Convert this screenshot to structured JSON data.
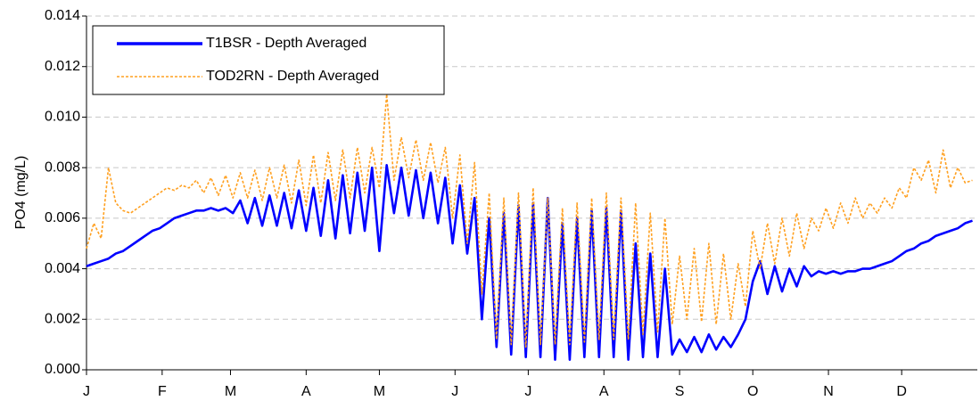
{
  "chart_data": {
    "type": "line",
    "y_label": "PO4 (mg/L)",
    "x": [
      0,
      3,
      6,
      9,
      12,
      15,
      18,
      21,
      24,
      27,
      30,
      33,
      36,
      39,
      42,
      45,
      48,
      51,
      54,
      57,
      60,
      63,
      66,
      69,
      72,
      75,
      78,
      81,
      84,
      87,
      90,
      93,
      96,
      99,
      102,
      105,
      108,
      111,
      114,
      117,
      120,
      123,
      126,
      129,
      132,
      135,
      138,
      141,
      144,
      147,
      150,
      153,
      156,
      159,
      162,
      165,
      168,
      171,
      174,
      177,
      180,
      183,
      186,
      189,
      192,
      195,
      198,
      201,
      204,
      207,
      210,
      213,
      216,
      219,
      222,
      225,
      228,
      231,
      234,
      237,
      240,
      243,
      246,
      249,
      252,
      255,
      258,
      261,
      264,
      267,
      270,
      273,
      276,
      279,
      282,
      285,
      288,
      291,
      294,
      297,
      300,
      303,
      306,
      309,
      312,
      315,
      318,
      321,
      324,
      327,
      330,
      333,
      336,
      339,
      342,
      345,
      348,
      351,
      354,
      357,
      360,
      363
    ],
    "series": [
      {
        "name": "T1BSR - Depth Averaged",
        "color": "#0000ff",
        "style": "solid",
        "values": [
          0.0041,
          0.0042,
          0.0043,
          0.0044,
          0.0046,
          0.0047,
          0.0049,
          0.0051,
          0.0053,
          0.0055,
          0.0056,
          0.0058,
          0.006,
          0.0061,
          0.0062,
          0.0063,
          0.0063,
          0.0064,
          0.0063,
          0.0064,
          0.0062,
          0.0067,
          0.0058,
          0.0068,
          0.0057,
          0.0069,
          0.0057,
          0.007,
          0.0056,
          0.0071,
          0.0055,
          0.0072,
          0.0053,
          0.0075,
          0.0052,
          0.0077,
          0.0054,
          0.0078,
          0.0055,
          0.008,
          0.0047,
          0.0081,
          0.0062,
          0.008,
          0.0061,
          0.0079,
          0.006,
          0.0078,
          0.0058,
          0.0076,
          0.005,
          0.0073,
          0.0046,
          0.0068,
          0.002,
          0.006,
          0.0009,
          0.0062,
          0.0006,
          0.0065,
          0.0005,
          0.0066,
          0.0005,
          0.0068,
          0.0004,
          0.0058,
          0.0004,
          0.006,
          0.0005,
          0.0063,
          0.0005,
          0.0064,
          0.0005,
          0.0063,
          0.0004,
          0.005,
          0.0005,
          0.0046,
          0.0005,
          0.004,
          0.0006,
          0.0012,
          0.0007,
          0.0013,
          0.0007,
          0.0014,
          0.0008,
          0.0013,
          0.0009,
          0.0014,
          0.002,
          0.0035,
          0.0043,
          0.003,
          0.0041,
          0.0031,
          0.004,
          0.0033,
          0.0041,
          0.0037,
          0.0039,
          0.0038,
          0.0039,
          0.0038,
          0.0039,
          0.0039,
          0.004,
          0.004,
          0.0041,
          0.0042,
          0.0043,
          0.0045,
          0.0047,
          0.0048,
          0.005,
          0.0051,
          0.0053,
          0.0054,
          0.0055,
          0.0056,
          0.0058,
          0.0059
        ]
      },
      {
        "name": "TOD2RN - Depth Averaged",
        "color": "#ffa020",
        "style": "dashed",
        "values": [
          0.0048,
          0.0058,
          0.0052,
          0.008,
          0.0066,
          0.0063,
          0.0062,
          0.0064,
          0.0066,
          0.0068,
          0.007,
          0.0072,
          0.0071,
          0.0073,
          0.0072,
          0.0075,
          0.007,
          0.0076,
          0.0069,
          0.0077,
          0.0068,
          0.0078,
          0.0068,
          0.0079,
          0.0067,
          0.008,
          0.0068,
          0.0081,
          0.0066,
          0.0083,
          0.0065,
          0.0085,
          0.0066,
          0.0086,
          0.0067,
          0.0087,
          0.0068,
          0.0088,
          0.007,
          0.0088,
          0.0072,
          0.0109,
          0.0075,
          0.0092,
          0.0076,
          0.0091,
          0.0075,
          0.009,
          0.0074,
          0.0088,
          0.006,
          0.0085,
          0.005,
          0.0082,
          0.003,
          0.007,
          0.0012,
          0.0068,
          0.001,
          0.007,
          0.0009,
          0.0072,
          0.001,
          0.0068,
          0.001,
          0.0064,
          0.001,
          0.0066,
          0.0011,
          0.0068,
          0.0012,
          0.007,
          0.0012,
          0.0068,
          0.0012,
          0.0066,
          0.0014,
          0.0062,
          0.0015,
          0.006,
          0.0018,
          0.0045,
          0.002,
          0.0048,
          0.0019,
          0.005,
          0.0018,
          0.0046,
          0.002,
          0.0042,
          0.0025,
          0.0055,
          0.004,
          0.0058,
          0.0042,
          0.006,
          0.0045,
          0.0062,
          0.0048,
          0.006,
          0.0055,
          0.0064,
          0.0056,
          0.0066,
          0.0058,
          0.0068,
          0.006,
          0.0066,
          0.0062,
          0.0068,
          0.0064,
          0.0072,
          0.0068,
          0.008,
          0.0075,
          0.0083,
          0.007,
          0.0087,
          0.0072,
          0.008,
          0.0074,
          0.0075
        ]
      }
    ],
    "xlim": [
      0,
      365
    ],
    "xticks": [
      {
        "value": 0,
        "label": "J"
      },
      {
        "value": 31,
        "label": "F"
      },
      {
        "value": 59,
        "label": "M"
      },
      {
        "value": 90,
        "label": "A"
      },
      {
        "value": 120,
        "label": "M"
      },
      {
        "value": 151,
        "label": "J"
      },
      {
        "value": 181,
        "label": "J"
      },
      {
        "value": 212,
        "label": "A"
      },
      {
        "value": 243,
        "label": "S"
      },
      {
        "value": 273,
        "label": "O"
      },
      {
        "value": 304,
        "label": "N"
      },
      {
        "value": 334,
        "label": "D"
      }
    ],
    "ylim": [
      0,
      0.014
    ],
    "yticks": [
      {
        "value": 0,
        "label": "0.000"
      },
      {
        "value": 0.002,
        "label": "0.002"
      },
      {
        "value": 0.004,
        "label": "0.004"
      },
      {
        "value": 0.006,
        "label": "0.006"
      },
      {
        "value": 0.008,
        "label": "0.008"
      },
      {
        "value": 0.01,
        "label": "0.010"
      },
      {
        "value": 0.012,
        "label": "0.012"
      },
      {
        "value": 0.014,
        "label": "0.014"
      }
    ],
    "grid": true,
    "legend": "upper left"
  }
}
